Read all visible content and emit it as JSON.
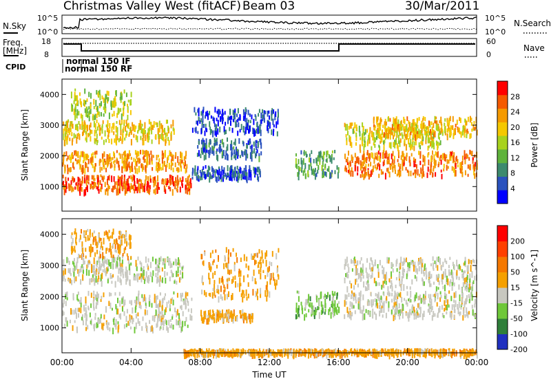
{
  "header": {
    "station": "Christmas Valley West (fitACF)",
    "beam": "Beam 03",
    "date": "30/Mar/2011"
  },
  "top_panels": {
    "nsky_label": "N.Sky",
    "nsky_ticks": [
      "10^5",
      "10^0"
    ],
    "nsearch_label": "N.Search",
    "nsearch_ticks": [
      "10^5",
      "10^0"
    ],
    "freq_label_1": "Freq.",
    "freq_label_2": "[MHz]",
    "freq_ticks": [
      "18",
      "8"
    ],
    "nave_label": "Nave",
    "nave_ticks": [
      "60",
      "0"
    ],
    "cpid_label": "CPID",
    "cpid_text_1": "normal 150 IF",
    "cpid_text_2": "normal 150 RF"
  },
  "chart_data": [
    {
      "type": "heatmap",
      "name": "power",
      "ylabel": "Slant Range [km]",
      "yticks": [
        "1000",
        "2000",
        "3000",
        "4000"
      ],
      "ylim": [
        200,
        4500
      ],
      "colorbar_label": "Power [dB]",
      "colorbar_ticks": [
        "4",
        "8",
        "12",
        "16",
        "20",
        "24",
        "28"
      ],
      "colors": [
        "#0000ff",
        "#2a52be",
        "#3c8a6e",
        "#5fb33c",
        "#a8d21e",
        "#f5c800",
        "#f59a00",
        "#f55a00",
        "#ff0000"
      ],
      "bands": [
        {
          "t": [
            0.0,
            7.5
          ],
          "r": [
            900,
            1400
          ],
          "v": 30
        },
        {
          "t": [
            0.0,
            7.2
          ],
          "r": [
            1600,
            2200
          ],
          "v": 26
        },
        {
          "t": [
            0.0,
            6.5
          ],
          "r": [
            2500,
            3200
          ],
          "v": 22
        },
        {
          "t": [
            0.5,
            4.0
          ],
          "r": [
            3300,
            4200
          ],
          "v": 18
        },
        {
          "t": [
            7.5,
            11.5
          ],
          "r": [
            1300,
            1700
          ],
          "v": 6
        },
        {
          "t": [
            7.8,
            11.5
          ],
          "r": [
            2000,
            2600
          ],
          "v": 8
        },
        {
          "t": [
            7.5,
            12.5
          ],
          "r": [
            2800,
            3600
          ],
          "v": 5
        },
        {
          "t": [
            13.5,
            16.0
          ],
          "r": [
            1400,
            2200
          ],
          "v": 12
        },
        {
          "t": [
            16.3,
            24.0
          ],
          "r": [
            1400,
            2200
          ],
          "v": 28
        },
        {
          "t": [
            16.3,
            22.0
          ],
          "r": [
            2300,
            3100
          ],
          "v": 20
        },
        {
          "t": [
            18.0,
            24.0
          ],
          "r": [
            2700,
            3300
          ],
          "v": 24
        }
      ]
    },
    {
      "type": "heatmap",
      "name": "velocity",
      "ylabel": "Slant Range [km]",
      "yticks": [
        "1000",
        "2000",
        "3000",
        "4000"
      ],
      "ylim": [
        200,
        4500
      ],
      "xlabel": "Time UT",
      "xticks": [
        "00:00",
        "04:00",
        "08:00",
        "12:00",
        "16:00",
        "20:00",
        "00:00"
      ],
      "colorbar_label": "Velocity [m s^-1]",
      "colorbar_ticks": [
        "200",
        "100",
        "50",
        "15",
        "-15",
        "-50",
        "-100",
        "-200"
      ],
      "colors": [
        "#2030c0",
        "#2f7f3a",
        "#6fc83a",
        "#c8c8c0",
        "#f5a000",
        "#f57800",
        "#ff4000",
        "#ff0000"
      ],
      "bands": [
        {
          "t": [
            0.0,
            7.5
          ],
          "r": [
            1000,
            2200
          ],
          "v": 3
        },
        {
          "t": [
            0.0,
            7.0
          ],
          "r": [
            2500,
            3300
          ],
          "v": 3
        },
        {
          "t": [
            0.5,
            4.0
          ],
          "r": [
            3300,
            4200
          ],
          "v": 4
        },
        {
          "t": [
            8.0,
            11.0
          ],
          "r": [
            1300,
            1600
          ],
          "v": 4
        },
        {
          "t": [
            8.0,
            12.5
          ],
          "r": [
            2000,
            3600
          ],
          "v": 4
        },
        {
          "t": [
            13.5,
            16.0
          ],
          "r": [
            1400,
            2200
          ],
          "v": 2
        },
        {
          "t": [
            16.3,
            24.0
          ],
          "r": [
            1400,
            2200
          ],
          "v": 3
        },
        {
          "t": [
            16.3,
            24.0
          ],
          "r": [
            2300,
            3300
          ],
          "v": 3
        },
        {
          "t": [
            7.0,
            24.0
          ],
          "r": [
            200,
            350
          ],
          "v": 4
        }
      ]
    }
  ]
}
